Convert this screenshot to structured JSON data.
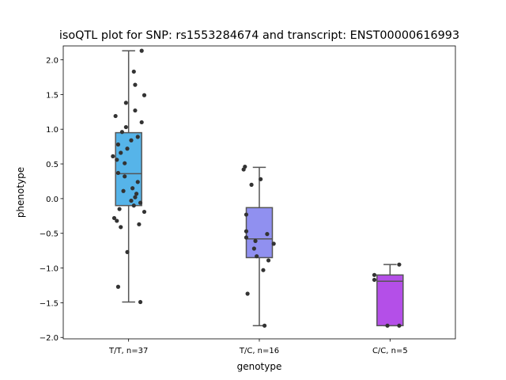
{
  "chart_data": {
    "type": "box",
    "title": "isoQTL plot for SNP: rs1553284674 and transcript: ENST00000616993",
    "xlabel": "genotype",
    "ylabel": "phenotype",
    "ylim": [
      -2.02,
      2.2
    ],
    "yticks": [
      2.0,
      1.5,
      1.0,
      0.5,
      0.0,
      -0.5,
      -1.0,
      -1.5,
      -2.0
    ],
    "ytick_labels": [
      "2.0",
      "1.5",
      "1.0",
      "0.5",
      "0.0",
      "−0.5",
      "−1.0",
      "−1.5",
      "−2.0"
    ],
    "grid": false,
    "categories": [
      "T/T, n=37",
      "T/C, n=16",
      "C/C, n=5"
    ],
    "boxes": [
      {
        "color": "#56b4e9",
        "whisker_low": -1.49,
        "q1": -0.1,
        "median": 0.36,
        "q3": 0.95,
        "whisker_high": 2.13,
        "points": [
          [
            0.1,
            2.13
          ],
          [
            0.04,
            1.83
          ],
          [
            0.05,
            1.64
          ],
          [
            0.12,
            1.49
          ],
          [
            -0.02,
            1.38
          ],
          [
            0.05,
            1.27
          ],
          [
            -0.1,
            1.19
          ],
          [
            0.1,
            1.1
          ],
          [
            -0.02,
            1.03
          ],
          [
            -0.05,
            0.96
          ],
          [
            0.07,
            0.89
          ],
          [
            0.02,
            0.84
          ],
          [
            -0.08,
            0.78
          ],
          [
            -0.01,
            0.72
          ],
          [
            -0.06,
            0.66
          ],
          [
            -0.12,
            0.61
          ],
          [
            -0.09,
            0.56
          ],
          [
            -0.03,
            0.51
          ],
          [
            -0.08,
            0.37
          ],
          [
            -0.03,
            0.32
          ],
          [
            0.07,
            0.24
          ],
          [
            0.03,
            0.15
          ],
          [
            -0.04,
            0.11
          ],
          [
            0.06,
            0.07
          ],
          [
            0.05,
            0.02
          ],
          [
            0.02,
            -0.03
          ],
          [
            0.09,
            -0.06
          ],
          [
            0.04,
            -0.1
          ],
          [
            -0.07,
            -0.15
          ],
          [
            0.12,
            -0.19
          ],
          [
            -0.11,
            -0.28
          ],
          [
            -0.09,
            -0.32
          ],
          [
            0.08,
            -0.37
          ],
          [
            -0.06,
            -0.41
          ],
          [
            -0.01,
            -0.77
          ],
          [
            -0.08,
            -1.27
          ],
          [
            0.09,
            -1.49
          ]
        ]
      },
      {
        "color": "#9090f0",
        "whisker_low": -1.83,
        "q1": -0.85,
        "median": -0.58,
        "q3": -0.13,
        "whisker_high": 0.45,
        "points": [
          [
            -0.11,
            0.46
          ],
          [
            -0.12,
            0.42
          ],
          [
            0.01,
            0.28
          ],
          [
            -0.06,
            0.2
          ],
          [
            -0.1,
            -0.23
          ],
          [
            -0.1,
            -0.47
          ],
          [
            0.06,
            -0.51
          ],
          [
            -0.1,
            -0.56
          ],
          [
            -0.03,
            -0.61
          ],
          [
            0.11,
            -0.65
          ],
          [
            -0.04,
            -0.72
          ],
          [
            -0.02,
            -0.83
          ],
          [
            0.07,
            -0.89
          ],
          [
            0.03,
            -1.03
          ],
          [
            -0.09,
            -1.37
          ],
          [
            0.04,
            -1.83
          ]
        ]
      },
      {
        "color": "#b44fe8",
        "whisker_low": -1.83,
        "q1": -1.83,
        "median": -1.19,
        "q3": -1.1,
        "whisker_high": -0.95,
        "points": [
          [
            0.07,
            -0.95
          ],
          [
            -0.12,
            -1.1
          ],
          [
            -0.12,
            -1.17
          ],
          [
            -0.02,
            -1.83
          ],
          [
            0.07,
            -1.83
          ]
        ]
      }
    ]
  }
}
